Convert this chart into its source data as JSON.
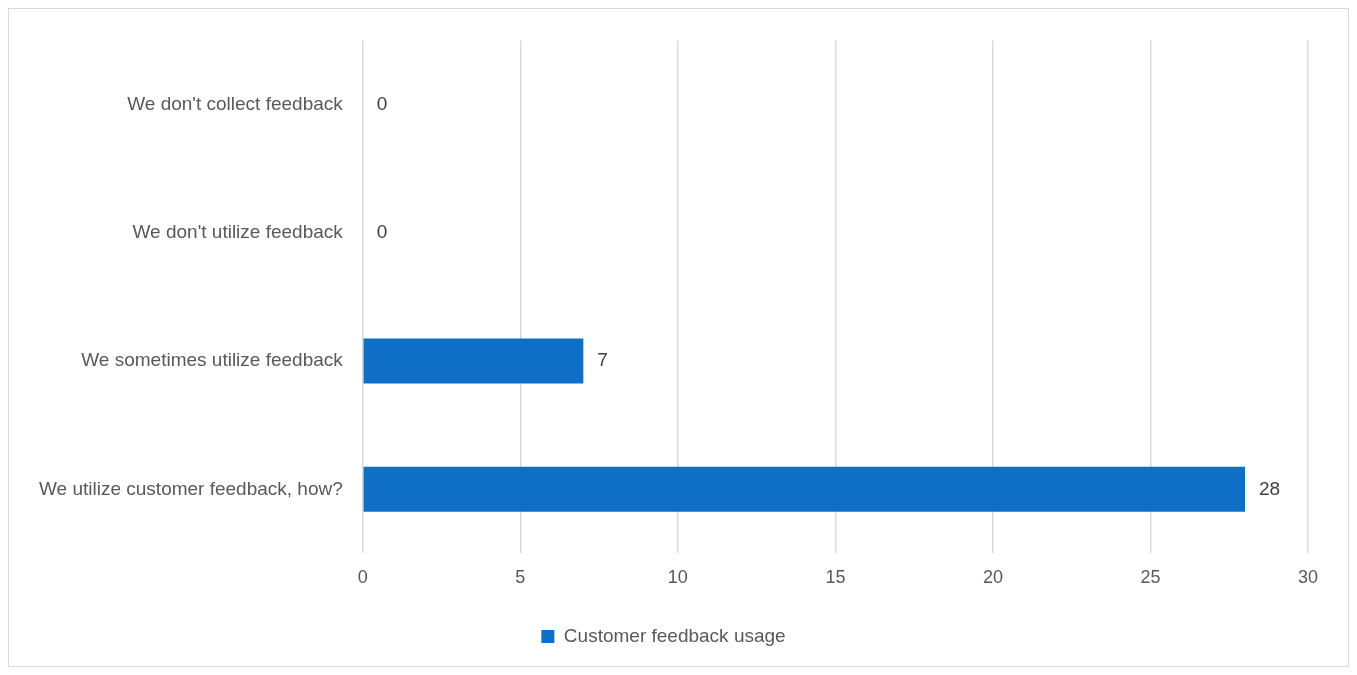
{
  "chart_data": {
    "type": "bar",
    "orientation": "horizontal",
    "categories": [
      "We don't collect feedback",
      "We don't utilize feedback",
      "We sometimes utilize feedback",
      "We utilize customer feedback, how?"
    ],
    "series": [
      {
        "name": "Customer feedback usage",
        "color": "#0f6fc6",
        "values": [
          0,
          0,
          7,
          28
        ]
      }
    ],
    "xlim": [
      0,
      30
    ],
    "xticks": [
      0,
      5,
      10,
      15,
      20,
      25,
      30
    ],
    "grid": "x",
    "legend": "bottom",
    "data_labels": true
  }
}
